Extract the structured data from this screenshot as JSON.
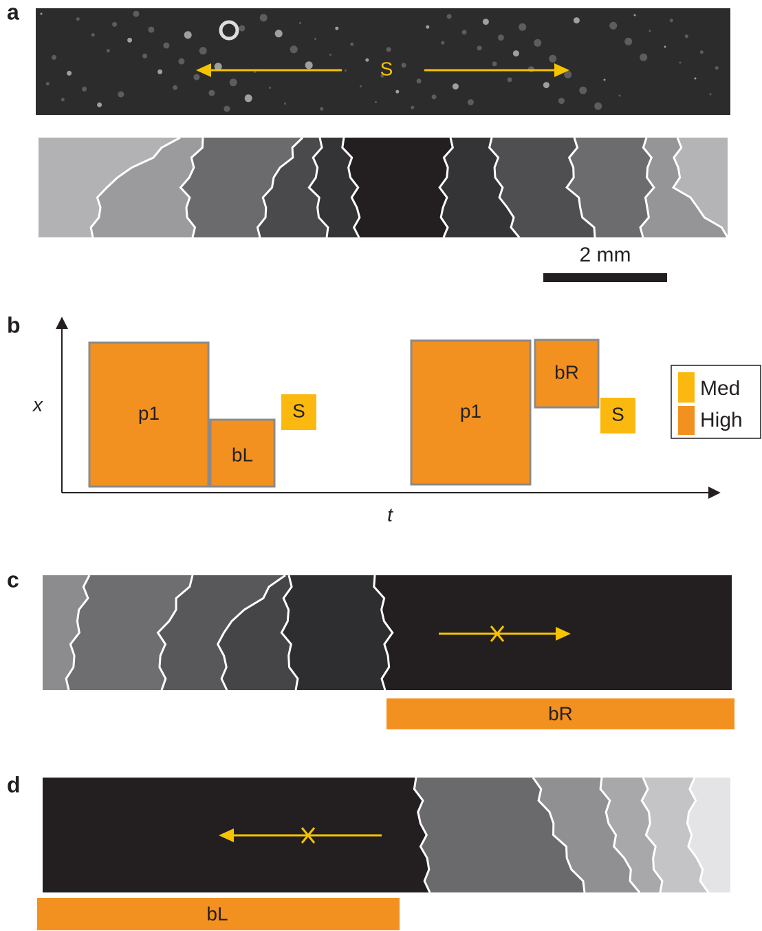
{
  "panel_a": {
    "label": "a",
    "source_label": "S",
    "scale_bar": "2 mm"
  },
  "panel_b": {
    "label": "b",
    "y_axis_label": "x",
    "x_axis_label": "t",
    "boxes": [
      "p1",
      "bL",
      "S",
      "p1",
      "bR",
      "S"
    ],
    "legend": [
      "Med",
      "High"
    ]
  },
  "panel_c": {
    "label": "c",
    "bar_label": "bR"
  },
  "panel_d": {
    "label": "d",
    "bar_label": "bL"
  }
}
